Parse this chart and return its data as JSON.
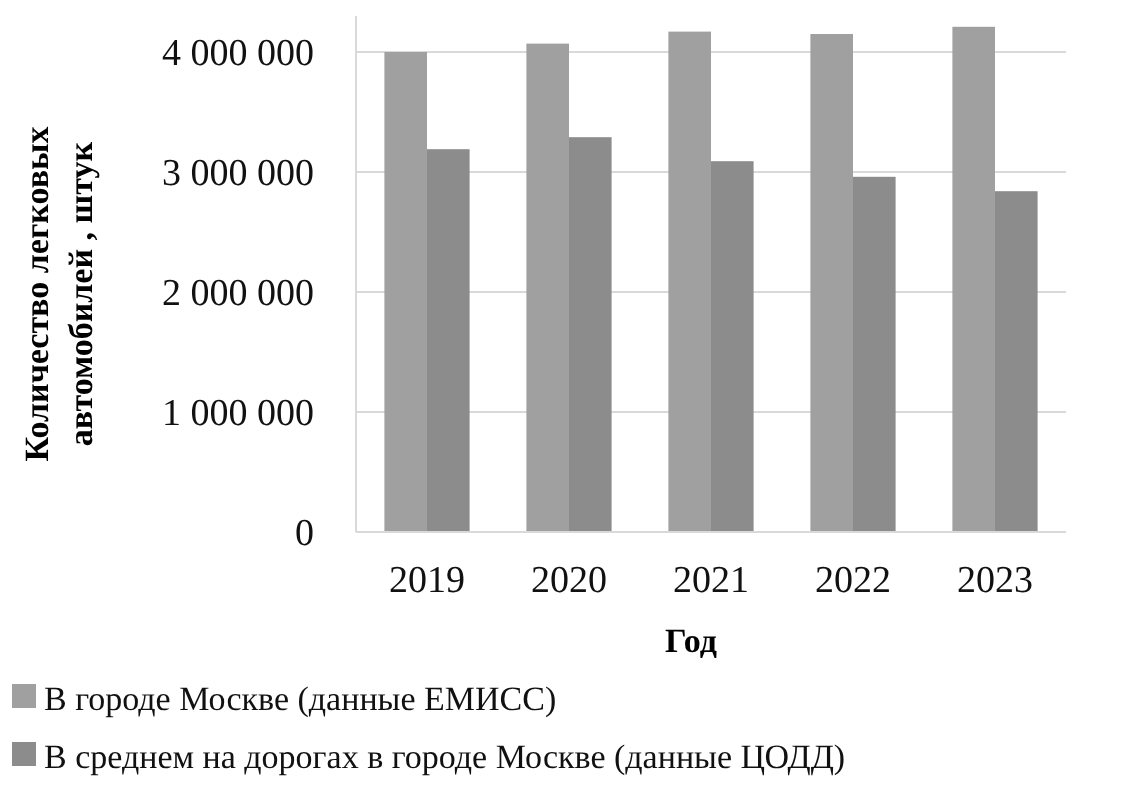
{
  "chart_data": {
    "type": "bar",
    "xlabel": "Год",
    "ylabel": "Количество легковых автомобилей , штук",
    "categories": [
      "2019",
      "2020",
      "2021",
      "2022",
      "2023"
    ],
    "series": [
      {
        "name": "В городе Москве (данные ЕМИСС)",
        "color": "#a0a0a0",
        "values": [
          4000000,
          4070000,
          4170000,
          4150000,
          4210000
        ]
      },
      {
        "name": "В среднем на дорогах в городе Москве (данные ЦОДД)",
        "color": "#8c8c8c",
        "values": [
          3190000,
          3290000,
          3090000,
          2960000,
          2840000
        ]
      }
    ],
    "ylim": [
      0,
      4300000
    ],
    "yticks": [
      {
        "value": 0,
        "label": "0"
      },
      {
        "value": 1000000,
        "label": "1 000 000"
      },
      {
        "value": 2000000,
        "label": "2 000 000"
      },
      {
        "value": 3000000,
        "label": "3 000 000"
      },
      {
        "value": 4000000,
        "label": "4 000 000"
      }
    ],
    "grid": "y",
    "legend": "bottom"
  }
}
